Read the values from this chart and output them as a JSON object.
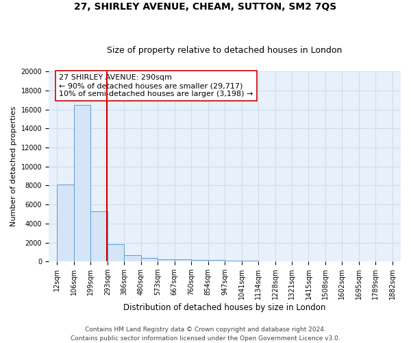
{
  "title": "27, SHIRLEY AVENUE, CHEAM, SUTTON, SM2 7QS",
  "subtitle": "Size of property relative to detached houses in London",
  "xlabel": "Distribution of detached houses by size in London",
  "ylabel": "Number of detached properties",
  "bin_edges": [
    12,
    106,
    199,
    293,
    386,
    480,
    573,
    667,
    760,
    854,
    947,
    1041,
    1134,
    1228,
    1321,
    1415,
    1508,
    1602,
    1695,
    1789,
    1882
  ],
  "bar_heights": [
    8100,
    16500,
    5300,
    1800,
    700,
    350,
    250,
    200,
    150,
    150,
    80,
    60,
    50,
    40,
    30,
    25,
    20,
    15,
    12,
    10
  ],
  "bar_facecolor": "#d6e4f7",
  "bar_edgecolor": "#5b9bd5",
  "grid_color": "#c8d8ec",
  "background_color": "#e8f0fa",
  "vline_x": 290,
  "vline_color": "#cc0000",
  "annotation_text": "27 SHIRLEY AVENUE: 290sqm\n← 90% of detached houses are smaller (29,717)\n10% of semi-detached houses are larger (3,198) →",
  "annotation_box_edgecolor": "#cc0000",
  "ylim": [
    0,
    20000
  ],
  "yticks": [
    0,
    2000,
    4000,
    6000,
    8000,
    10000,
    12000,
    14000,
    16000,
    18000,
    20000
  ],
  "footnote": "Contains HM Land Registry data © Crown copyright and database right 2024.\nContains public sector information licensed under the Open Government Licence v3.0.",
  "title_fontsize": 10,
  "subtitle_fontsize": 9,
  "xlabel_fontsize": 8.5,
  "ylabel_fontsize": 8,
  "tick_fontsize": 7,
  "annotation_fontsize": 8,
  "footnote_fontsize": 6.5
}
